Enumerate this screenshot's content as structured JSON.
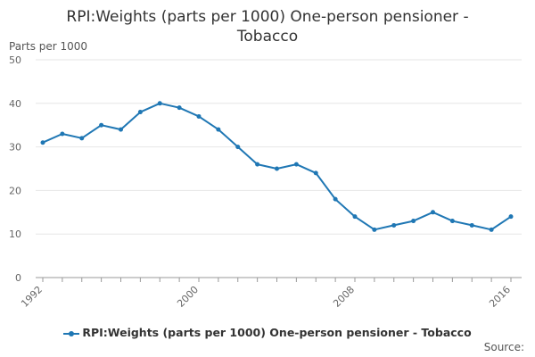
{
  "title_lines": [
    "RPI:Weights (parts per 1000) One-person pensioner -",
    "Tobacco"
  ],
  "y_unit": "Parts per 1000",
  "source": "Source:",
  "legend_label": "RPI:Weights (parts per 1000) One-person pensioner - Tobacco",
  "colors": {
    "series": "#1f77b4",
    "grid": "#e6e6e6",
    "axis": "#999999"
  },
  "chart_data": {
    "type": "line",
    "title": "RPI:Weights (parts per 1000) One-person pensioner - Tobacco",
    "ylabel": "Parts per 1000",
    "xlabel": "",
    "ylim": [
      0,
      50
    ],
    "y_ticks": [
      0,
      10,
      20,
      30,
      40,
      50
    ],
    "x_tick_labels": [
      "1992",
      "2000",
      "2008",
      "2016"
    ],
    "grid": true,
    "legend": "bottom",
    "series": [
      {
        "name": "RPI:Weights (parts per 1000) One-person pensioner - Tobacco",
        "x": [
          1992,
          1993,
          1994,
          1995,
          1996,
          1997,
          1998,
          1999,
          2000,
          2001,
          2002,
          2003,
          2004,
          2005,
          2006,
          2007,
          2008,
          2009,
          2010,
          2011,
          2012,
          2013,
          2014,
          2015,
          2016
        ],
        "values": [
          31,
          33,
          32,
          35,
          34,
          38,
          40,
          39,
          37,
          34,
          30,
          26,
          25,
          26,
          24,
          18,
          14,
          11,
          12,
          13,
          15,
          13,
          12,
          11,
          14
        ]
      }
    ]
  }
}
